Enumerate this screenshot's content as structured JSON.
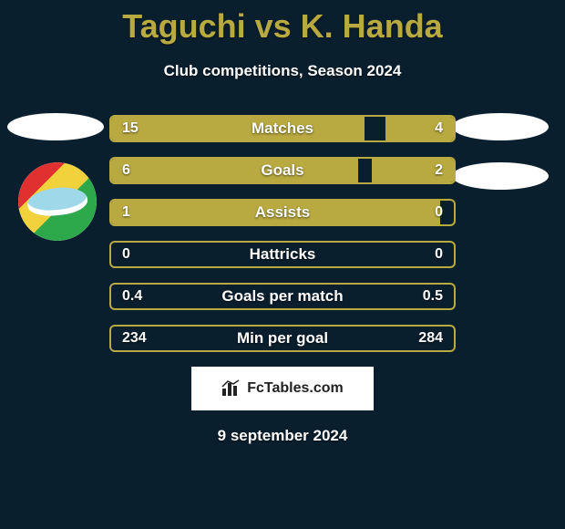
{
  "header": {
    "title": "Taguchi vs K. Handa",
    "title_color": "#b8a940",
    "subtitle": "Club competitions, Season 2024"
  },
  "stats": {
    "accent_color": "#b8a940",
    "bar_border_color": "#b8a940",
    "text_color": "#ffffff",
    "rows": [
      {
        "label": "Matches",
        "left_value": "15",
        "right_value": "4",
        "left_pct": 74,
        "right_pct": 20
      },
      {
        "label": "Goals",
        "left_value": "6",
        "right_value": "2",
        "left_pct": 72,
        "right_pct": 24
      },
      {
        "label": "Assists",
        "left_value": "1",
        "right_value": "0",
        "left_pct": 96,
        "right_pct": 0
      },
      {
        "label": "Hattricks",
        "left_value": "0",
        "right_value": "0",
        "left_pct": 0,
        "right_pct": 0
      },
      {
        "label": "Goals per match",
        "left_value": "0.4",
        "right_value": "0.5",
        "left_pct": 0,
        "right_pct": 0
      },
      {
        "label": "Min per goal",
        "left_value": "234",
        "right_value": "284",
        "left_pct": 0,
        "right_pct": 0
      }
    ]
  },
  "footer": {
    "site_label": "FcTables.com",
    "date": "9 september 2024"
  },
  "colors": {
    "background": "#0a1f2e",
    "badge_oval": "#ffffff"
  }
}
